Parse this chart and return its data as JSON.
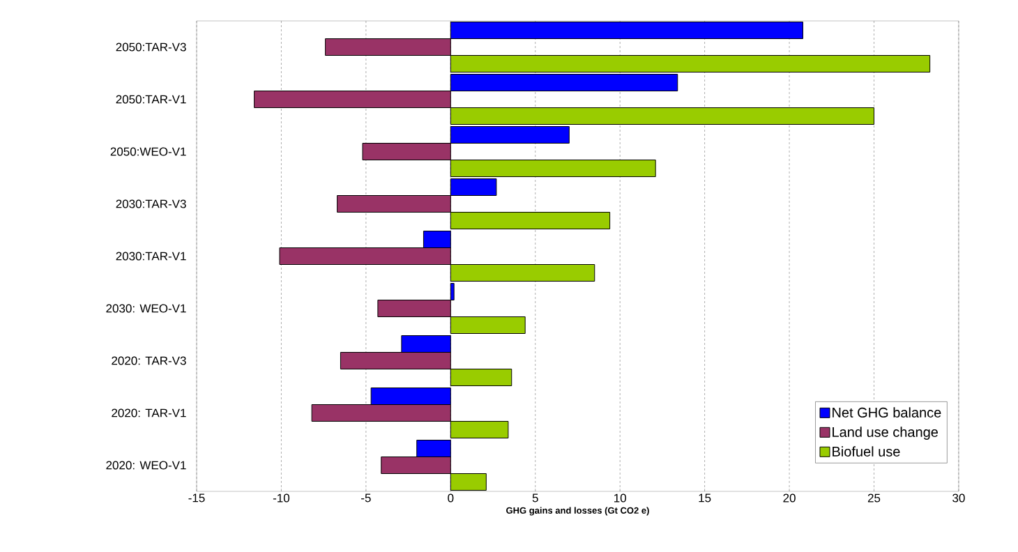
{
  "chart_data": {
    "type": "bar",
    "orientation": "horizontal",
    "xlabel": "**GHG gains and losses (Gt CO2 e)**",
    "categories": [
      "2050:TAR-V3",
      "2050:TAR-V1",
      "2050:WEO-V1",
      "2030:TAR-V3",
      "2030:TAR-V1",
      "2030: WEO-V1",
      "2020: TAR-V3",
      "2020: TAR-V1",
      "2020: WEO-V1"
    ],
    "series": [
      {
        "name": "Net GHG balance",
        "color": "#0000ff",
        "values": [
          20.8,
          13.4,
          7.0,
          2.7,
          -1.6,
          0.2,
          -2.9,
          -4.7,
          -2.0
        ]
      },
      {
        "name": "Land use change",
        "color": "#993366",
        "values": [
          -7.4,
          -11.6,
          -5.2,
          -6.7,
          -10.1,
          -4.3,
          -6.5,
          -8.2,
          -4.1
        ]
      },
      {
        "name": "Biofuel use",
        "color": "#99cc00",
        "values": [
          28.3,
          25.0,
          12.1,
          9.4,
          8.5,
          4.4,
          3.6,
          3.4,
          2.1
        ]
      }
    ],
    "xlim": [
      -15,
      30
    ],
    "xticks": [
      -15,
      -10,
      -5,
      0,
      5,
      10,
      15,
      20,
      25,
      30
    ],
    "grid": "x",
    "legend": "bottom right"
  }
}
